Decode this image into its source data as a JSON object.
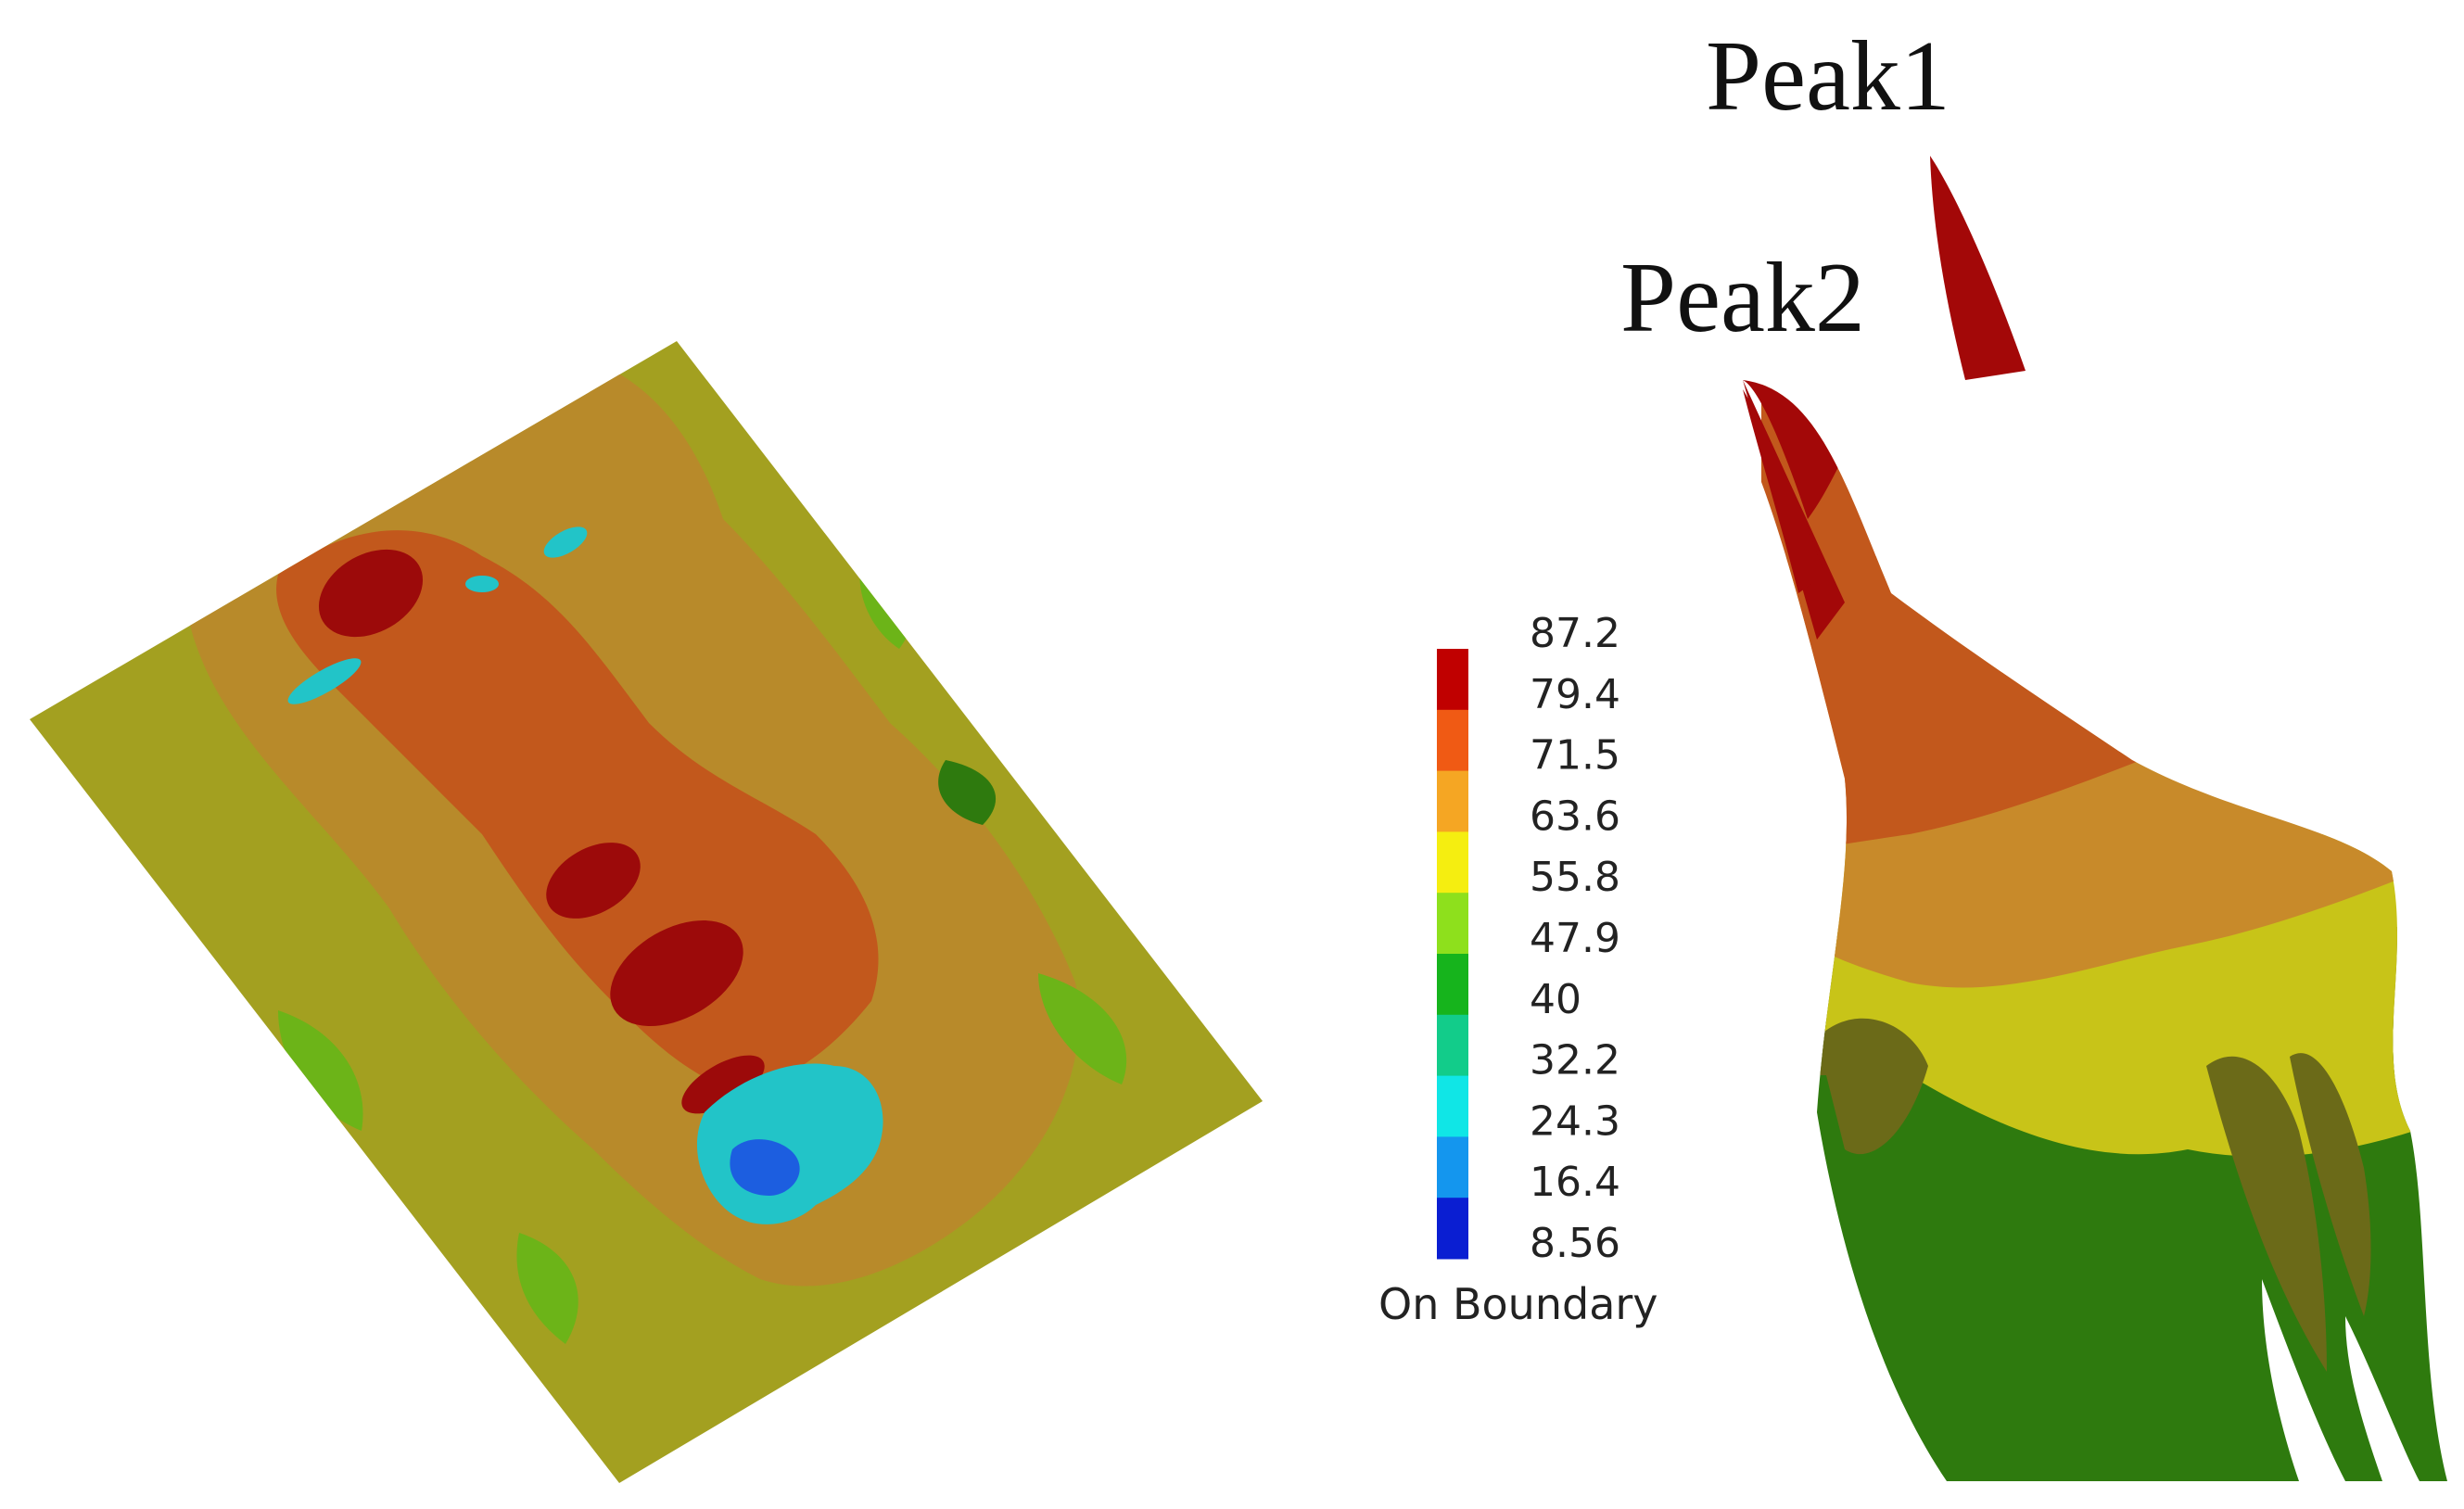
{
  "legend": {
    "ticks": [
      "87.2",
      "79.4",
      "71.5",
      "63.6",
      "55.8",
      "47.9",
      "40",
      "32.2",
      "24.3",
      "16.4",
      "8.56"
    ],
    "caption": "On Boundary",
    "colors": [
      "#c00000",
      "#f05a14",
      "#f5a623",
      "#f5ee10",
      "#8ee01c",
      "#16b41c",
      "#12cc8a",
      "#10e6e6",
      "#1496ee",
      "#0a1ed2"
    ]
  },
  "labels": {
    "peak1": "Peak1",
    "peak2": "Peak2"
  },
  "palette": {
    "olive": "#a3a020",
    "tan": "#b88a2a",
    "orange_brown": "#c2581c",
    "dark_red": "#9c0a0a",
    "yellow_olive": "#c8c418",
    "green": "#6cb418",
    "dark_green": "#2e7a0e",
    "cyan": "#22c4c8",
    "blue": "#1c5ee0"
  }
}
